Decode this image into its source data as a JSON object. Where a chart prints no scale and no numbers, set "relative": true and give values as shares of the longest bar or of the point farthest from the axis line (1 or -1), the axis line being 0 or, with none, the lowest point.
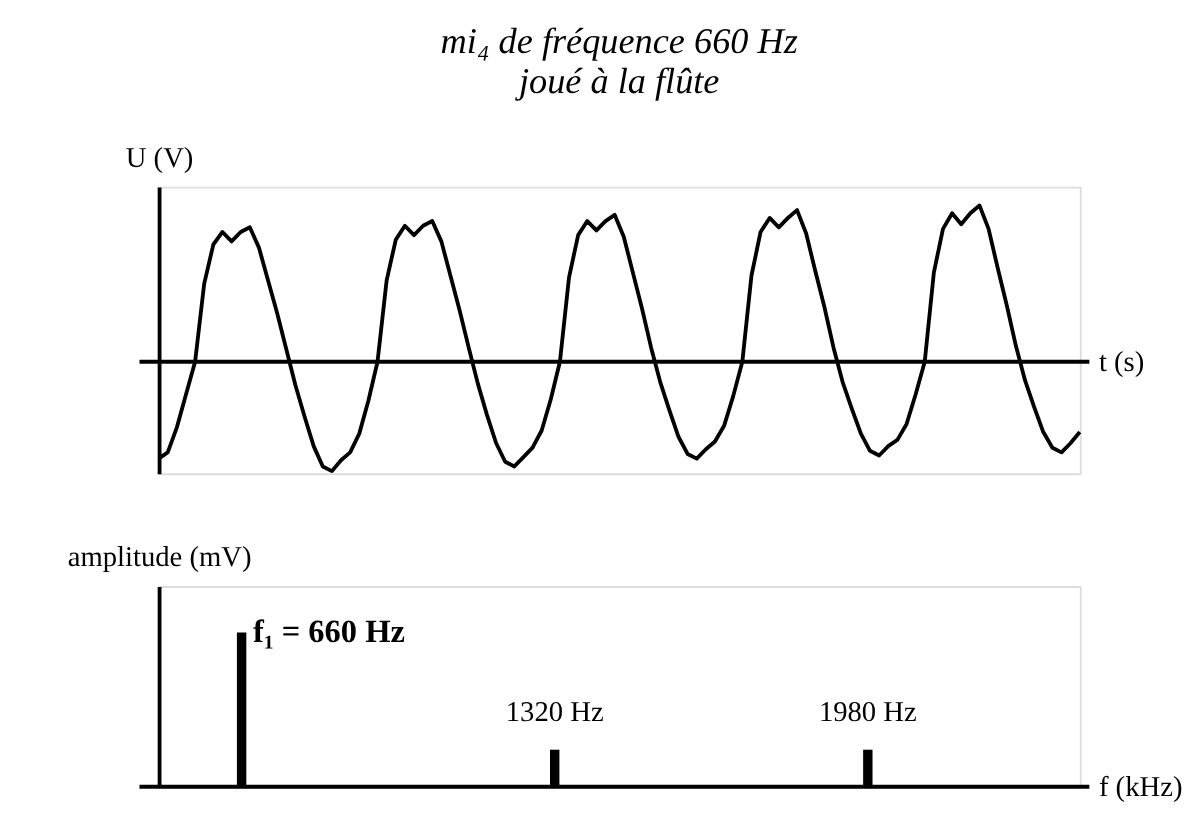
{
  "chart_data": [
    {
      "type": "line",
      "title": [
        "mi₄ de fréquence 660 Hz",
        "joué à la flûte"
      ],
      "ylabel": "U (V)",
      "xlabel": "t (s)",
      "relative": true,
      "marker": "none",
      "line_style": "solid",
      "grid": false,
      "categories": [
        null,
        null,
        null,
        null,
        null,
        null,
        null,
        null,
        null,
        null,
        null,
        null,
        null,
        null,
        null,
        null,
        null,
        null,
        null,
        null,
        null,
        null,
        null,
        null,
        null,
        null,
        null,
        null,
        null,
        null,
        null,
        null,
        null,
        null,
        null,
        null,
        null,
        null,
        null,
        null,
        null,
        null,
        null,
        null,
        null,
        null,
        null,
        null,
        null,
        null,
        null,
        null,
        null,
        null,
        null,
        null,
        null,
        null,
        null,
        null,
        null,
        null,
        null,
        null,
        null,
        null,
        null,
        null,
        null,
        null,
        null,
        null,
        null,
        null,
        null,
        null,
        null,
        null,
        null,
        null,
        null,
        null,
        null,
        null,
        null,
        null,
        null,
        null,
        null,
        null,
        null,
        null,
        null,
        null,
        null,
        null,
        null,
        null,
        null,
        null,
        null,
        null
      ],
      "series": [
        {
          "color": "#000000",
          "values": [
            -0.62,
            -0.58,
            -0.42,
            -0.21,
            0,
            0.5,
            0.75,
            0.83,
            0.77,
            0.83,
            0.86,
            0.73,
            0.52,
            0.31,
            0.08,
            -0.15,
            -0.35,
            -0.54,
            -0.67,
            -0.7,
            -0.63,
            -0.58,
            -0.46,
            -0.25,
            0,
            0.52,
            0.78,
            0.87,
            0.81,
            0.87,
            0.9,
            0.77,
            0.55,
            0.33,
            0.09,
            -0.14,
            -0.34,
            -0.52,
            -0.64,
            -0.67,
            -0.61,
            -0.55,
            -0.44,
            -0.24,
            0,
            0.54,
            0.81,
            0.9,
            0.84,
            0.9,
            0.94,
            0.8,
            0.57,
            0.34,
            0.09,
            -0.13,
            -0.31,
            -0.48,
            -0.59,
            -0.62,
            -0.56,
            -0.51,
            -0.41,
            -0.22,
            0,
            0.55,
            0.83,
            0.92,
            0.86,
            0.92,
            0.97,
            0.82,
            0.58,
            0.35,
            0.09,
            -0.13,
            -0.3,
            -0.46,
            -0.57,
            -0.6,
            -0.54,
            -0.5,
            -0.4,
            -0.21,
            0,
            0.57,
            0.85,
            0.95,
            0.88,
            0.95,
            1,
            0.85,
            0.6,
            0.36,
            0.1,
            -0.12,
            -0.29,
            -0.45,
            -0.55,
            -0.58,
            -0.52,
            -0.45
          ]
        }
      ]
    },
    {
      "type": "bar",
      "ylabel": "amplitude (mV)",
      "xlabel": "f (kHz)",
      "relative": true,
      "grid": false,
      "categories": [
        null,
        null,
        null
      ],
      "series": [
        {
          "color": "#000000",
          "values": [
            1,
            0.24,
            0.24
          ]
        }
      ],
      "annotations": [
        "f₁ = 660 Hz",
        "1320 Hz",
        "1980 Hz"
      ]
    }
  ]
}
